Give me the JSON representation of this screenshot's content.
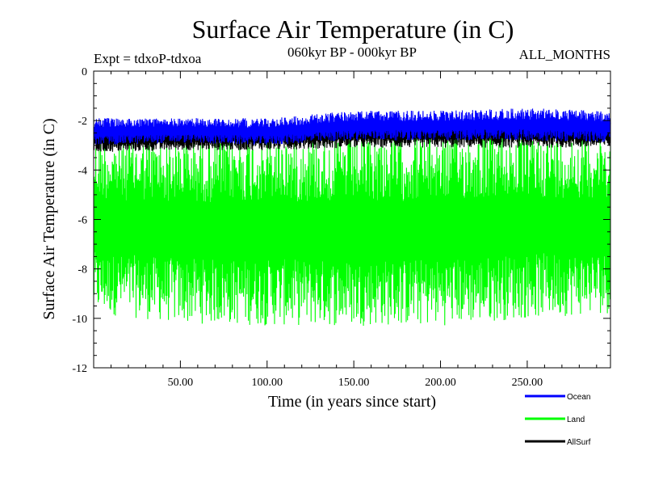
{
  "chart_data": {
    "type": "line",
    "title": "Surface Air Temperature (in C)",
    "subtitle_left": "Expt = tdxoP-tdxoa",
    "subtitle_center": "060kyr BP - 000kyr BP",
    "subtitle_right": "ALL_MONTHS",
    "xlabel": "Time (in years since start)",
    "ylabel": "Surface Air Temperature (in C)",
    "xlim": [
      0,
      298
    ],
    "ylim": [
      -12,
      0
    ],
    "x_ticks": [
      {
        "value": 50,
        "label": "50.00"
      },
      {
        "value": 100,
        "label": "100.00"
      },
      {
        "value": 150,
        "label": "150.00"
      },
      {
        "value": 200,
        "label": "200.00"
      },
      {
        "value": 250,
        "label": "250.00"
      }
    ],
    "y_ticks": [
      {
        "value": 0,
        "label": "0"
      },
      {
        "value": -2,
        "label": "-2"
      },
      {
        "value": -4,
        "label": "-4"
      },
      {
        "value": -6,
        "label": "-6"
      },
      {
        "value": -8,
        "label": "-8"
      },
      {
        "value": -10,
        "label": "-10"
      },
      {
        "value": -12,
        "label": "-12"
      }
    ],
    "legend_position": "bottom-right",
    "series": [
      {
        "name": "Ocean",
        "color": "#0000ff",
        "description": "monthly values oscillating between about -3.0 and -1.5",
        "envelope_x": [
          0,
          50,
          100,
          150,
          200,
          250,
          298
        ],
        "upper": [
          -1.9,
          -1.9,
          -1.9,
          -1.6,
          -1.6,
          -1.5,
          -1.6
        ],
        "lower": [
          -3.0,
          -2.9,
          -3.0,
          -2.8,
          -2.8,
          -2.8,
          -2.9
        ]
      },
      {
        "name": "Land",
        "color": "#00ff00",
        "description": "monthly values oscillating between about -10.5 and -2.5",
        "envelope_x": [
          0,
          50,
          100,
          150,
          200,
          250,
          298
        ],
        "upper": [
          -2.7,
          -2.7,
          -2.6,
          -2.6,
          -2.5,
          -2.5,
          -2.6
        ],
        "lower": [
          -9.8,
          -10.2,
          -10.3,
          -10.3,
          -10.3,
          -10.0,
          -9.8
        ]
      },
      {
        "name": "AllSurf",
        "color": "#000000",
        "description": "monthly values oscillating between about -3.3 and -2.0, mostly hidden beneath the Ocean series",
        "envelope_x": [
          0,
          50,
          100,
          150,
          200,
          250,
          298
        ],
        "upper": [
          -2.2,
          -2.2,
          -2.1,
          -2.0,
          -2.0,
          -1.9,
          -2.0
        ],
        "lower": [
          -3.3,
          -3.2,
          -3.2,
          -3.1,
          -3.1,
          -3.1,
          -3.1
        ]
      }
    ]
  }
}
